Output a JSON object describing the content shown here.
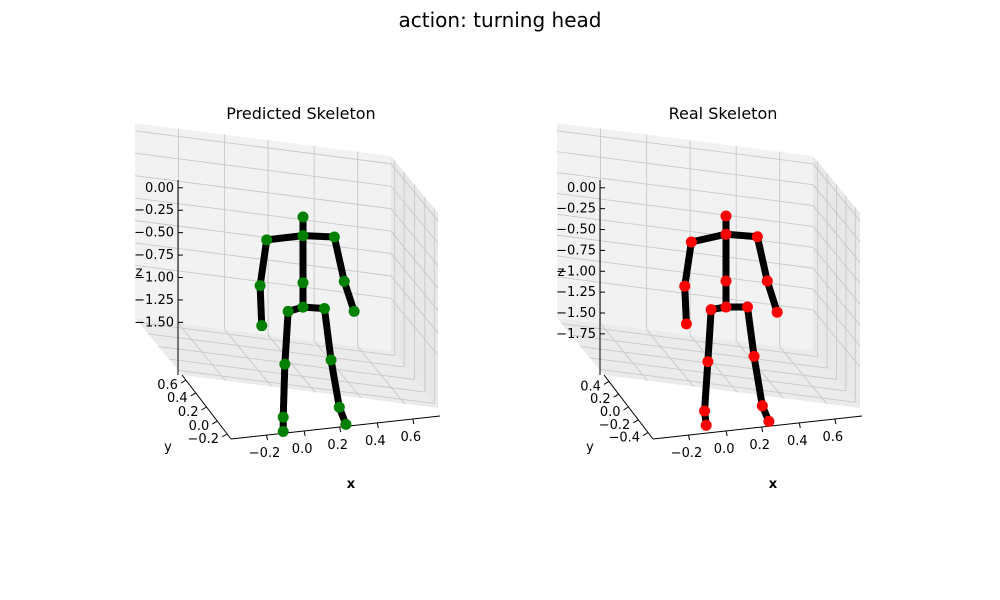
{
  "figure": {
    "suptitle": "action: turning head"
  },
  "chart_data": [
    {
      "type": "scatter",
      "title": "Predicted Skeleton",
      "projection": "3d",
      "xlabel": "x",
      "ylabel": "y",
      "zlabel": "z",
      "point_color": "#008000",
      "bone_color": "#000000",
      "x_ticks": [
        "−0.2",
        "0.0",
        "0.2",
        "0.4",
        "0.6"
      ],
      "y_ticks": [
        "0.6",
        "0.4",
        "0.2",
        "0.0",
        "−0.2"
      ],
      "z_ticks": [
        "0.00",
        "−0.25",
        "−0.50",
        "−0.75",
        "−1.00",
        "−1.25",
        "−1.50"
      ],
      "xlim": [
        -0.3,
        0.65
      ],
      "ylim": [
        -0.25,
        0.65
      ],
      "zlim": [
        -1.7,
        0.05
      ],
      "joints": [
        {
          "name": "head",
          "x": 0.0,
          "y": 0.0,
          "z": -0.22
        },
        {
          "name": "neck",
          "x": 0.0,
          "y": 0.0,
          "z": -0.35
        },
        {
          "name": "left_shoulder",
          "x": -0.22,
          "y": 0.0,
          "z": -0.38
        },
        {
          "name": "right_shoulder",
          "x": 0.19,
          "y": 0.0,
          "z": -0.36
        },
        {
          "name": "left_elbow",
          "x": -0.26,
          "y": 0.0,
          "z": -0.7
        },
        {
          "name": "right_elbow",
          "x": 0.25,
          "y": 0.0,
          "z": -0.67
        },
        {
          "name": "left_hand",
          "x": -0.25,
          "y": 0.0,
          "z": -0.98
        },
        {
          "name": "right_hand",
          "x": 0.31,
          "y": 0.0,
          "z": -0.88
        },
        {
          "name": "spine",
          "x": 0.0,
          "y": 0.0,
          "z": -0.68
        },
        {
          "name": "hip_center",
          "x": 0.0,
          "y": 0.0,
          "z": -0.85
        },
        {
          "name": "left_hip",
          "x": -0.09,
          "y": 0.0,
          "z": -0.88
        },
        {
          "name": "right_hip",
          "x": 0.13,
          "y": 0.0,
          "z": -0.86
        },
        {
          "name": "left_knee",
          "x": -0.11,
          "y": 0.0,
          "z": -1.25
        },
        {
          "name": "right_knee",
          "x": 0.17,
          "y": 0.0,
          "z": -1.22
        },
        {
          "name": "left_ankle",
          "x": -0.12,
          "y": 0.0,
          "z": -1.62
        },
        {
          "name": "right_ankle",
          "x": 0.22,
          "y": 0.0,
          "z": -1.55
        },
        {
          "name": "left_foot",
          "x": -0.12,
          "y": 0.0,
          "z": -1.72
        },
        {
          "name": "right_foot",
          "x": 0.26,
          "y": 0.0,
          "z": -1.67
        }
      ]
    },
    {
      "type": "scatter",
      "title": "Real Skeleton",
      "projection": "3d",
      "xlabel": "x",
      "ylabel": "y",
      "zlabel": "z",
      "point_color": "#ff0000",
      "bone_color": "#000000",
      "x_ticks": [
        "−0.2",
        "0.0",
        "0.2",
        "0.4",
        "0.6"
      ],
      "y_ticks": [
        "0.4",
        "0.2",
        "0.0",
        "−0.2",
        "−0.4"
      ],
      "z_ticks": [
        "0.00",
        "−0.25",
        "−0.50",
        "−0.75",
        "−1.00",
        "−1.25",
        "−1.50",
        "−1.75"
      ],
      "xlim": [
        -0.3,
        0.65
      ],
      "ylim": [
        -0.45,
        0.5
      ],
      "zlim": [
        -1.8,
        0.05
      ],
      "joints": [
        {
          "name": "head",
          "x": 0.0,
          "y": 0.0,
          "z": -0.22
        },
        {
          "name": "neck",
          "x": 0.0,
          "y": 0.0,
          "z": -0.36
        },
        {
          "name": "left_shoulder",
          "x": -0.21,
          "y": 0.0,
          "z": -0.42
        },
        {
          "name": "right_shoulder",
          "x": 0.19,
          "y": 0.0,
          "z": -0.38
        },
        {
          "name": "left_elbow",
          "x": -0.25,
          "y": 0.0,
          "z": -0.76
        },
        {
          "name": "right_elbow",
          "x": 0.25,
          "y": 0.0,
          "z": -0.72
        },
        {
          "name": "left_hand",
          "x": -0.24,
          "y": 0.0,
          "z": -1.05
        },
        {
          "name": "right_hand",
          "x": 0.31,
          "y": 0.0,
          "z": -0.96
        },
        {
          "name": "spine",
          "x": 0.0,
          "y": 0.0,
          "z": -0.72
        },
        {
          "name": "hip_center",
          "x": 0.0,
          "y": 0.0,
          "z": -0.92
        },
        {
          "name": "left_hip",
          "x": -0.09,
          "y": 0.0,
          "z": -0.94
        },
        {
          "name": "right_hip",
          "x": 0.13,
          "y": 0.0,
          "z": -0.92
        },
        {
          "name": "left_knee",
          "x": -0.11,
          "y": 0.0,
          "z": -1.34
        },
        {
          "name": "right_knee",
          "x": 0.17,
          "y": 0.0,
          "z": -1.3
        },
        {
          "name": "left_ankle",
          "x": -0.13,
          "y": 0.0,
          "z": -1.72
        },
        {
          "name": "right_ankle",
          "x": 0.22,
          "y": 0.0,
          "z": -1.68
        },
        {
          "name": "left_foot",
          "x": -0.12,
          "y": 0.0,
          "z": -1.83
        },
        {
          "name": "right_foot",
          "x": 0.26,
          "y": 0.0,
          "z": -1.8
        }
      ]
    }
  ]
}
